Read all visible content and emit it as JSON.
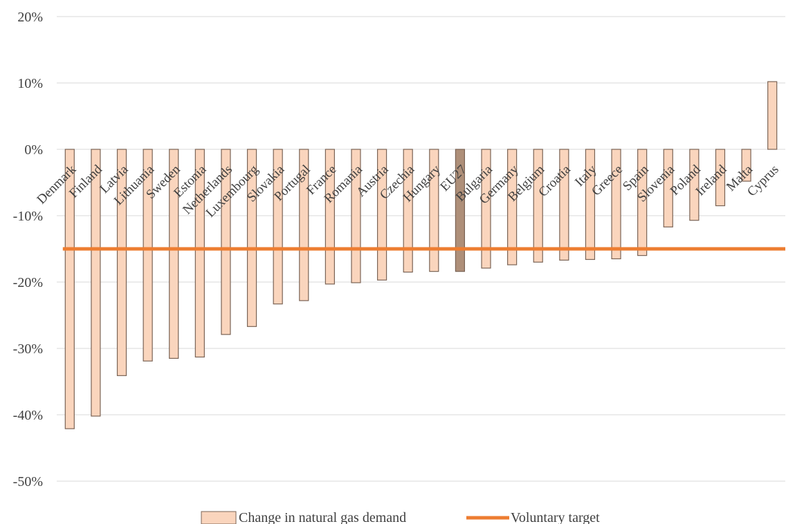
{
  "chart_data": {
    "type": "bar",
    "categories": [
      "Denmark",
      "Finland",
      "Latvia",
      "Lithuania",
      "Sweden",
      "Estonia",
      "Netherlands",
      "Luxembourg",
      "Slovakia",
      "Portugal",
      "France",
      "Romania",
      "Austria",
      "Czechia",
      "Hungary",
      "EU27",
      "Bulgaria",
      "Germany",
      "Belgium",
      "Croatia",
      "Italy",
      "Greece",
      "Spain",
      "Slovenia",
      "Poland",
      "Ireland",
      "Malta",
      "Cyprus"
    ],
    "series": [
      {
        "name": "Change in natural gas demand",
        "values": [
          -42.1,
          -40.2,
          -34.1,
          -31.9,
          -31.5,
          -31.3,
          -27.9,
          -26.7,
          -23.3,
          -22.8,
          -20.3,
          -20.1,
          -19.7,
          -18.5,
          -18.4,
          -18.4,
          -17.9,
          -17.4,
          -17.0,
          -16.7,
          -16.6,
          -16.5,
          -16.0,
          -11.7,
          -10.7,
          -8.5,
          -4.8,
          10.2
        ]
      }
    ],
    "highlight_category": "EU27",
    "reference_line": {
      "name": "Voluntary target",
      "value": -15
    },
    "ylim": [
      -50,
      20
    ],
    "y_ticks": [
      "20%",
      "10%",
      "0%",
      "-10%",
      "-20%",
      "-30%",
      "-40%",
      "-50%"
    ],
    "grid": true,
    "legend_position": "bottom",
    "colors": {
      "bar_fill": "#fad5bd",
      "bar_stroke": "#7a6355",
      "highlight_fill": "#ae8f79",
      "target_line": "#ed7d31",
      "gridline": "#d9d9d9"
    }
  }
}
